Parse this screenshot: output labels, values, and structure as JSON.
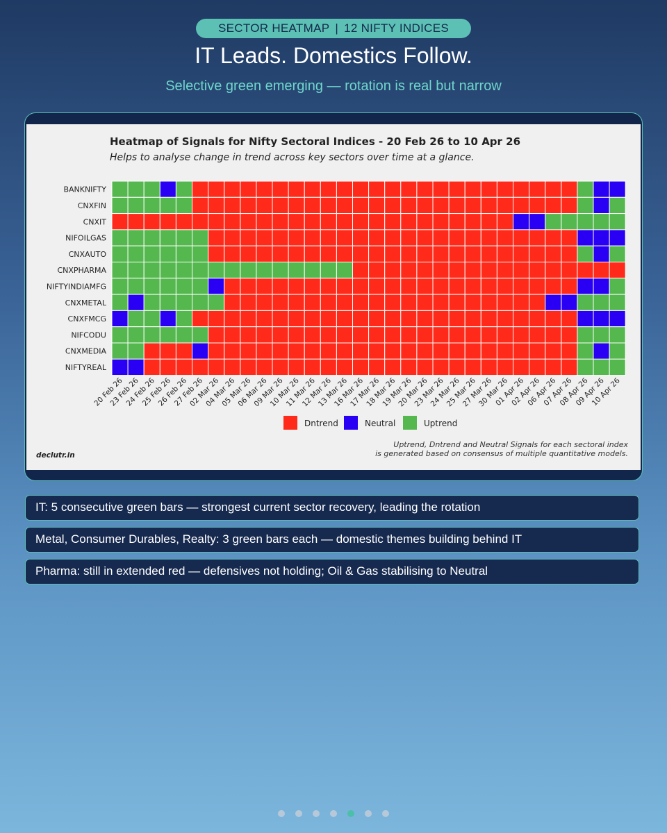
{
  "header": {
    "tag_left": "SECTOR HEATMAP",
    "tag_sep": "|",
    "tag_right": "12 NIFTY INDICES",
    "title": "IT Leads. Domestics Follow.",
    "subtitle": "Selective green emerging — rotation is real but narrow"
  },
  "colors": {
    "Dntrend": "#ff2a1a",
    "Neutral": "#2a00f5",
    "Uptrend": "#55b84e",
    "accent": "#5cc0b5"
  },
  "chart_data": {
    "type": "heatmap",
    "title": "Heatmap of Signals for Nifty Sectoral Indices - 20 Feb 26 to 10 Apr 26",
    "subtitle": "Helps to analyse change in trend across key sectors over time at a glance.",
    "legend": [
      "Dntrend",
      "Neutral",
      "Uptrend"
    ],
    "legend_position": "bottom-center",
    "code_key": {
      "D": "Dntrend",
      "N": "Neutral",
      "U": "Uptrend"
    },
    "dates": [
      "20 Feb 26",
      "23 Feb 26",
      "24 Feb 26",
      "25 Feb 26",
      "26 Feb 26",
      "27 Feb 26",
      "02 Mar 26",
      "04 Mar 26",
      "05 Mar 26",
      "06 Mar 26",
      "09 Mar 26",
      "10 Mar 26",
      "11 Mar 26",
      "12 Mar 26",
      "13 Mar 26",
      "16 Mar 26",
      "17 Mar 26",
      "18 Mar 26",
      "19 Mar 26",
      "20 Mar 26",
      "23 Mar 26",
      "24 Mar 26",
      "25 Mar 26",
      "27 Mar 26",
      "30 Mar 26",
      "01 Apr 26",
      "02 Apr 26",
      "06 Apr 26",
      "07 Apr 26",
      "08 Apr 26",
      "09 Apr 26",
      "10 Apr 26"
    ],
    "indices": [
      "BANKNIFTY",
      "CNXFIN",
      "CNXIT",
      "NIFOILGAS",
      "CNXAUTO",
      "CNXPHARMA",
      "NIFTYINDIAMFG",
      "CNXMETAL",
      "CNXFMCG",
      "NIFCODU",
      "CNXMEDIA",
      "NIFTYREAL"
    ],
    "signals": [
      "UUUNUDDDDDDDDDDDDDDDDDDDDDDDDUNN",
      "UUUUUDDDDDDDDDDDDDDDDDDDDDDDDUNU",
      "DDDDDDDDDDDDDDDDDDDDDDDDDNNUUUUU",
      "UUUUUUDDDDDDDDDDDDDDDDDDDDDDDNNN",
      "UUUUUUDDDDDDDDDDDDDDDDDDDDDDDUNU",
      "UUUUUUUUUUUUUUUDDDDDDDDDDDDDDDDD",
      "UUUUUUNDDDDDDDDDDDDDDDDDDDDDDNNU",
      "UNUUUUUDDDDDDDDDDDDDDDDDDDDNNUUU",
      "NUUNUDDDDDDDDDDDDDDDDDDDDDDDDNNN",
      "UUUUUUDDDDDDDDDDDDDDDDDDDDDDDUUU",
      "UUDDDNDDDDDDDDDDDDDDDDDDDDDDDUNU",
      "NNDDDDDDDDDDDDDDDDDDDDDDDDDDDUUU"
    ],
    "footnote_line1": "Uptrend, Dntrend and Neutral Signals for each sectoral index",
    "footnote_line2": "is generated based on consensus of multiple quantitative models.",
    "source": "declutr.in"
  },
  "callouts": [
    "IT: 5 consecutive green bars — strongest current sector recovery, leading the rotation",
    "Metal, Consumer Durables, Realty: 3 green bars each — domestic themes building behind IT",
    "Pharma: still in extended red — defensives not holding; Oil & Gas stabilising to Neutral"
  ],
  "pager": {
    "total": 7,
    "active_index": 4
  }
}
